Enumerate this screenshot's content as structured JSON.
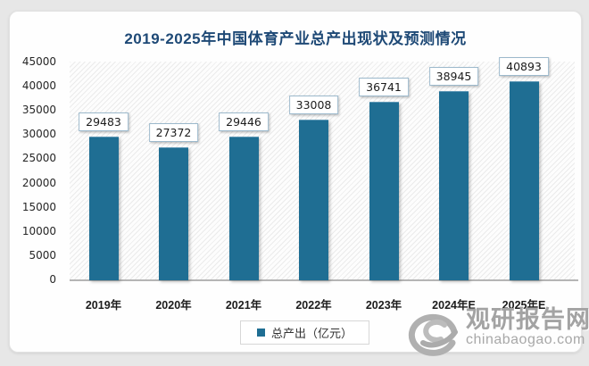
{
  "chart_data": {
    "type": "bar",
    "title": "2019-2025年中国体育产业总产出现状及预测情况",
    "categories": [
      "2019年",
      "2020年",
      "2021年",
      "2022年",
      "2023年",
      "2024年E",
      "2025年E"
    ],
    "values": [
      29483,
      27372,
      29446,
      33008,
      36741,
      38945,
      40893
    ],
    "series_name": "总产出（亿元）",
    "xlabel": "",
    "ylabel": "",
    "ylim": [
      0,
      45000
    ],
    "ytick_step": 5000,
    "grid": false,
    "legend_position": "bottom",
    "bar_color": "#1f6e93",
    "title_color": "#1e4976"
  },
  "legend": {
    "label": "总产出（亿元）",
    "swatch_icon": "legend-square-icon"
  },
  "watermark": {
    "site_name": "观研报告网",
    "site_url": "chinabaogao.com",
    "logo": "swirl-logo-icon",
    "color": "#a3a3a3"
  }
}
